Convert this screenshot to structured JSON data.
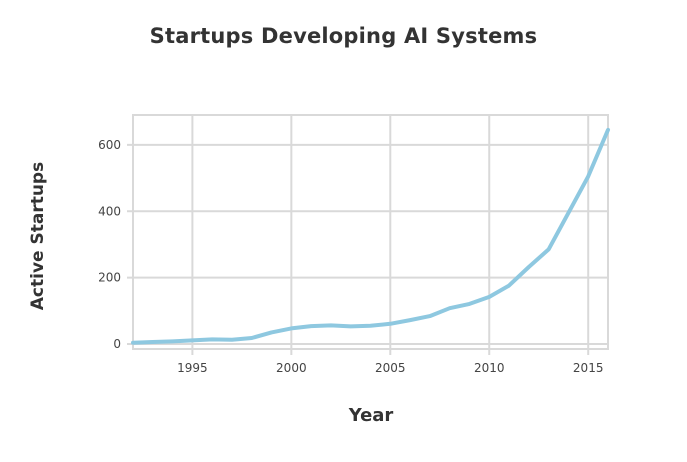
{
  "chart_data": {
    "type": "line",
    "title": "Startups Developing AI Systems",
    "xlabel": "Year",
    "ylabel": "Active Startups",
    "xlim": [
      1992,
      2016
    ],
    "ylim": [
      -15,
      690
    ],
    "x_ticks": [
      1995,
      2000,
      2005,
      2010,
      2015
    ],
    "y_ticks": [
      0,
      200,
      400,
      600
    ],
    "grid": true,
    "legend": "none",
    "series": [
      {
        "color": "#8ec8e0",
        "x": [
          1992,
          1993,
          1994,
          1995,
          1996,
          1997,
          1998,
          1999,
          2000,
          2001,
          2002,
          2003,
          2004,
          2005,
          2006,
          2007,
          2008,
          2009,
          2010,
          2011,
          2012,
          2013,
          2014,
          2015,
          2016
        ],
        "y": [
          4,
          6,
          8,
          11,
          14,
          13,
          18,
          35,
          47,
          54,
          56,
          53,
          55,
          61,
          72,
          84,
          108,
          121,
          142,
          176,
          232,
          285,
          395,
          505,
          645
        ]
      }
    ]
  }
}
